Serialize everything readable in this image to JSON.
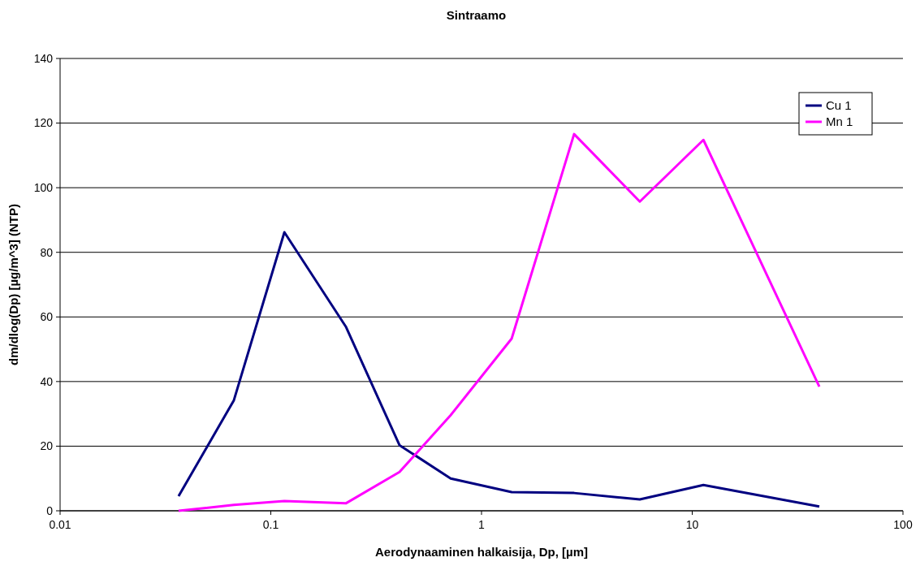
{
  "chart_data": {
    "type": "line",
    "title": "Sintraamo",
    "xlabel": "Aerodynaaminen halkaisija, Dp, [µm]",
    "ylabel": "dm/dlog(Dp) [µg/m^3] (NTP)",
    "x": [
      0.0365,
      0.0668,
      0.116,
      0.227,
      0.408,
      0.714,
      1.39,
      2.75,
      5.64,
      11.3,
      40.1
    ],
    "series": [
      {
        "name": "Cu 1",
        "color": "#000080",
        "values": [
          4.5,
          34.2,
          86.2,
          57,
          20.3,
          10,
          5.8,
          5.5,
          3.5,
          8,
          1.3
        ]
      },
      {
        "name": "Mn 1",
        "color": "#ff00ff",
        "values": [
          0,
          1.8,
          3,
          2.3,
          12,
          29.6,
          53.3,
          116.6,
          95.7,
          114.8,
          38.4
        ]
      }
    ],
    "log": "x",
    "xlim": [
      0.01,
      100
    ],
    "xticks": [
      0.01,
      0.1,
      1,
      10,
      100
    ],
    "ylim": [
      0,
      140
    ],
    "yticks": [
      0,
      20,
      40,
      60,
      80,
      100,
      120,
      140
    ],
    "grid": "y",
    "legend": "top right",
    "marker": "none",
    "line_style": "solid"
  }
}
